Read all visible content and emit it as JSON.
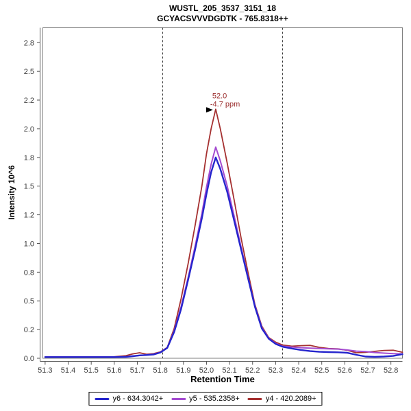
{
  "title": {
    "line1": "WUSTL_205_3537_3151_18",
    "line2": "GCYACSVVVDGDTK - 765.8318++"
  },
  "chart_data": {
    "type": "line",
    "title": "WUSTL_205_3537_3151_18",
    "subtitle": "GCYACSVVVDGDTK - 765.8318++",
    "xlabel": "Retention Time",
    "ylabel": "Intensity 10^6",
    "xlim": [
      51.29,
      52.85
    ],
    "ylim": [
      0,
      2.88
    ],
    "grid": false,
    "legend_position": "bottom",
    "x_ticks": [
      {
        "v": 51.3,
        "label": "51.3"
      },
      {
        "v": 51.4,
        "label": "51.4"
      },
      {
        "v": 51.5,
        "label": "51.5"
      },
      {
        "v": 51.6,
        "label": "51.6"
      },
      {
        "v": 51.7,
        "label": "51.7"
      },
      {
        "v": 51.8,
        "label": "51.8"
      },
      {
        "v": 51.9,
        "label": "51.9"
      },
      {
        "v": 52.0,
        "label": "52.0"
      },
      {
        "v": 52.1,
        "label": "52.1"
      },
      {
        "v": 52.2,
        "label": "52.2"
      },
      {
        "v": 52.3,
        "label": "52.3"
      },
      {
        "v": 52.4,
        "label": "52.4"
      },
      {
        "v": 52.5,
        "label": "52.5"
      },
      {
        "v": 52.6,
        "label": "52.6"
      },
      {
        "v": 52.7,
        "label": "52.7"
      },
      {
        "v": 52.8,
        "label": "52.8"
      }
    ],
    "y_ticks": [
      {
        "v": 0.0,
        "label": "0.0"
      },
      {
        "v": 0.25,
        "label": "0.2"
      },
      {
        "v": 0.5,
        "label": "0.5"
      },
      {
        "v": 0.75,
        "label": "0.8"
      },
      {
        "v": 1.0,
        "label": "1.0"
      },
      {
        "v": 1.25,
        "label": "1.2"
      },
      {
        "v": 1.5,
        "label": "1.5"
      },
      {
        "v": 1.75,
        "label": "1.8"
      },
      {
        "v": 2.0,
        "label": "2.0"
      },
      {
        "v": 2.25,
        "label": "2.2"
      },
      {
        "v": 2.5,
        "label": "2.5"
      },
      {
        "v": 2.75,
        "label": "2.8"
      }
    ],
    "peak_boundaries": [
      51.81,
      52.33
    ],
    "annotation": {
      "rt_label": "52.0",
      "ppm_label": "-4.7 ppm",
      "anchor_x": 52.04,
      "anchor_y": 2.17,
      "color": "#9c2f2f"
    },
    "x": [
      51.3,
      51.35,
      51.4,
      51.45,
      51.5,
      51.55,
      51.6,
      51.65,
      51.68,
      51.71,
      51.74,
      51.77,
      51.8,
      51.83,
      51.86,
      51.89,
      51.92,
      51.95,
      51.98,
      52.0,
      52.02,
      52.04,
      52.06,
      52.09,
      52.12,
      52.15,
      52.18,
      52.21,
      52.24,
      52.27,
      52.3,
      52.33,
      52.37,
      52.41,
      52.45,
      52.49,
      52.53,
      52.57,
      52.61,
      52.65,
      52.69,
      52.73,
      52.77,
      52.81,
      52.85
    ],
    "series": [
      {
        "name": "y6 - 634.3042+",
        "color": "#2525cd",
        "stroke_width": 2.4,
        "values": [
          0.01,
          0.01,
          0.01,
          0.01,
          0.01,
          0.01,
          0.01,
          0.012,
          0.018,
          0.025,
          0.028,
          0.032,
          0.05,
          0.09,
          0.23,
          0.43,
          0.68,
          0.94,
          1.22,
          1.43,
          1.62,
          1.75,
          1.65,
          1.45,
          1.2,
          0.95,
          0.7,
          0.45,
          0.26,
          0.17,
          0.125,
          0.1,
          0.085,
          0.072,
          0.062,
          0.056,
          0.054,
          0.052,
          0.048,
          0.03,
          0.015,
          0.012,
          0.015,
          0.02,
          0.035
        ]
      },
      {
        "name": "y5 - 535.2358+",
        "color": "#a44bd0",
        "stroke_width": 2.0,
        "values": [
          0.012,
          0.012,
          0.012,
          0.012,
          0.012,
          0.012,
          0.012,
          0.014,
          0.02,
          0.024,
          0.03,
          0.035,
          0.052,
          0.092,
          0.24,
          0.45,
          0.7,
          0.97,
          1.26,
          1.49,
          1.69,
          1.84,
          1.72,
          1.5,
          1.24,
          0.97,
          0.71,
          0.46,
          0.27,
          0.175,
          0.13,
          0.105,
          0.098,
          0.092,
          0.088,
          0.085,
          0.082,
          0.08,
          0.072,
          0.062,
          0.058,
          0.05,
          0.045,
          0.04,
          0.038
        ]
      },
      {
        "name": "y4 - 420.2089+",
        "color": "#a53030",
        "stroke_width": 1.8,
        "values": [
          0.012,
          0.012,
          0.012,
          0.012,
          0.012,
          0.012,
          0.013,
          0.022,
          0.038,
          0.048,
          0.035,
          0.04,
          0.055,
          0.095,
          0.26,
          0.52,
          0.82,
          1.15,
          1.5,
          1.78,
          2.0,
          2.17,
          2.0,
          1.7,
          1.38,
          1.05,
          0.75,
          0.47,
          0.28,
          0.18,
          0.14,
          0.115,
          0.105,
          0.11,
          0.112,
          0.095,
          0.085,
          0.082,
          0.07,
          0.048,
          0.052,
          0.06,
          0.068,
          0.07,
          0.052
        ]
      }
    ],
    "colors": {
      "plot_border": "#808080",
      "axis": "#555555",
      "tick_label": "#3c3c3c",
      "boundary_line": "#3a3a3a",
      "arrow": "#000000"
    }
  }
}
